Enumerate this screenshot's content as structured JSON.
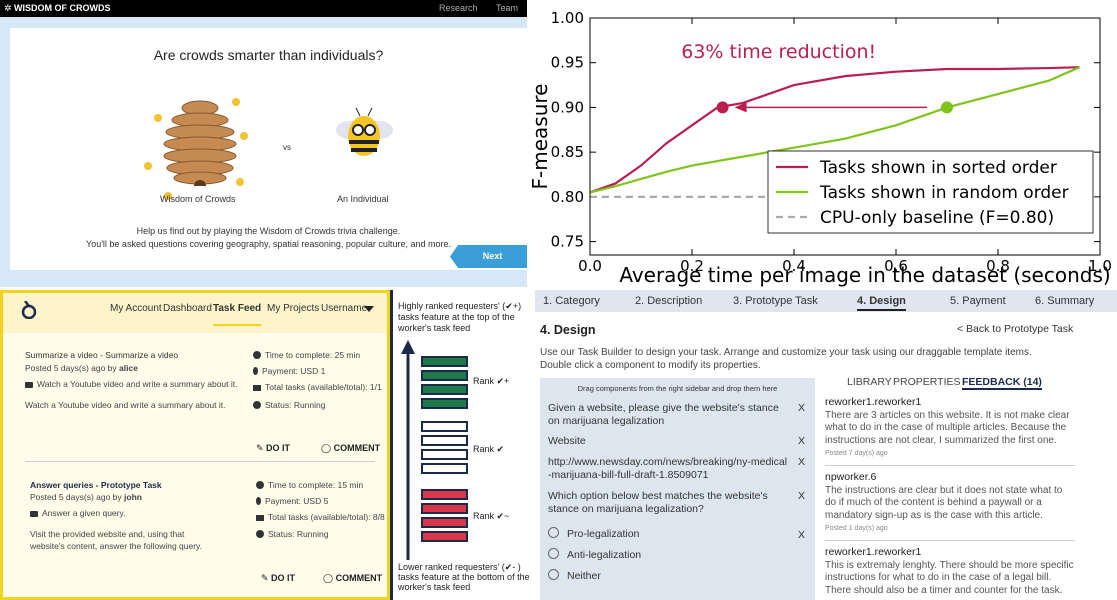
{
  "wisdom": {
    "brand": "✲ WISDOM OF CROWDS",
    "nav": [
      "Research",
      "Team"
    ],
    "title": "Are crowds smarter than individuals?",
    "left_label": "Wisdom of Crowds",
    "vs": "vs",
    "right_label": "An Individual",
    "description": [
      "Help us find out by playing the Wisdom of Crowds trivia challenge.",
      "You'll be asked questions covering geography, spatial reasoning, popular culture, and more."
    ],
    "button": "Next"
  },
  "chart_data": {
    "type": "line",
    "xlabel": "Average time per image in the dataset (seconds)",
    "ylabel": "F-measure",
    "annotation": "63% time reduction!",
    "x": [
      0,
      0.05,
      0.1,
      0.15,
      0.2,
      0.25,
      0.3,
      0.4,
      0.5,
      0.6,
      0.7,
      0.8,
      0.9,
      0.96
    ],
    "series": [
      {
        "name": "Tasks shown in sorted order",
        "color": "#b81f4f",
        "values": [
          0.805,
          0.815,
          0.835,
          0.86,
          0.88,
          0.9,
          0.905,
          0.925,
          0.935,
          0.94,
          0.943,
          0.943,
          0.944,
          0.945
        ]
      },
      {
        "name": "Tasks shown in random order",
        "color": "#7fc31c",
        "values": [
          0.805,
          0.812,
          0.82,
          0.828,
          0.835,
          0.84,
          0.845,
          0.855,
          0.865,
          0.88,
          0.9,
          0.915,
          0.93,
          0.945
        ]
      },
      {
        "name": "CPU-only baseline (F=0.80)",
        "color": "#aaaaaa",
        "dashed": true,
        "values": [
          0.8,
          0.8,
          0.8,
          0.8,
          0.8,
          0.8,
          0.8,
          0.8,
          0.8,
          0.8,
          0.8,
          0.8,
          0.8,
          0.8
        ]
      }
    ],
    "markers": [
      {
        "x": 0.26,
        "y": 0.9,
        "color": "#b81f4f"
      },
      {
        "x": 0.7,
        "y": 0.9,
        "color": "#7fc31c"
      }
    ],
    "xlim": [
      0,
      1
    ],
    "ylim": [
      0.735,
      1
    ],
    "xticks": [
      {
        "value": 0,
        "label": "0.0"
      },
      0.2,
      0.4,
      0.6,
      0.8,
      {
        "value": 1,
        "label": "1.0"
      }
    ],
    "yticks": [
      0.75,
      {
        "value": 0.8,
        "label": "0.80"
      },
      0.85,
      {
        "value": 0.9,
        "label": "0.90"
      },
      0.95,
      {
        "value": 1,
        "label": "1.00"
      }
    ],
    "legend": "lower right"
  },
  "task_feed": {
    "nav": [
      "My Account",
      "Dashboard",
      "Task Feed",
      "My Projects",
      "Username"
    ],
    "tasks": [
      {
        "title": "Summarize a video - Summarize a video",
        "posted": "Posted 5 days(s) ago by",
        "author": "alice",
        "summary": "Watch a Youtube video and write a summary about it.",
        "details": "Watch a Youtube video and write a summary about it.",
        "time": "Time to complete: 25 min",
        "payment": "Payment: USD 1",
        "total": "Total tasks (available/total): 1/1",
        "status": "Status: Running"
      },
      {
        "title": "Answer queries - Prototype Task",
        "posted": "Posted 5 days(s) ago by",
        "author": "john",
        "summary": "Answer a given query.",
        "details": "Visit the provided website and, using that website's content, answer the following query.",
        "time": "Time to complete: 15 min",
        "payment": "Payment: USD 5",
        "total": "Total tasks (available/total): 8/8",
        "status": "Status: Running"
      }
    ],
    "do_it": "DO IT",
    "comment": "COMMENT"
  },
  "rank_diagram": {
    "top": "Highly ranked requesters' (✔+) tasks feature at the top of the worker's task feed",
    "ranks": [
      "Rank ✔+",
      "Rank ✔",
      "Rank ✔~"
    ],
    "bottom": "Lower ranked requesters' (✔- ) tasks feature at the bottom of the worker's task feed"
  },
  "design": {
    "tabs": [
      "1. Category",
      "2. Description",
      "3. Prototype Task",
      "4. Design",
      "5. Payment",
      "6. Summary"
    ],
    "heading": "4. Design",
    "back": "< Back to Prototype Task",
    "intro": [
      "Use our Task Builder to design your task. Arrange and customize your task using our draggable template items.",
      "Double click a component to modify its properties."
    ],
    "builder_hint": "Drag components from the right sidebar and drop them here",
    "components": [
      "Given a website, please give the website's stance on marijuana legalization",
      "Website",
      "http://www.newsday.com/news/breaking/ny-medical-marijuana-bill-full-draft-1.8509071",
      "Which option below best matches the website's stance on marijuana legalization?"
    ],
    "remove": "X",
    "options": [
      "Pro-legalization",
      "Anti-legalization",
      "Neither"
    ],
    "sidebar_tabs": [
      "LIBRARY",
      "PROPERTIES",
      "FEEDBACK (14)"
    ],
    "feedback": [
      {
        "author": "reworker1.reworker1",
        "text": "There are 3 articles on this website. It is not make clear what to do in the case of multiple articles. Because the instructions are not clear, I summarized the first one.",
        "posted": "Posted 7 day(s) ago"
      },
      {
        "author": "npworker.6",
        "text": "The instructions are clear but it does not state what to do if much of the content is behind a paywall or a mandatory sign-up as is the case with this article.",
        "posted": "Posted 1 day(s) ago"
      },
      {
        "author": "reworker1.reworker1",
        "text": "This is extremaly lenghty. There should be more specific instructions for what to do in the case of a legal bill. There should also be a timer and counter for the task.",
        "posted": ""
      }
    ]
  }
}
